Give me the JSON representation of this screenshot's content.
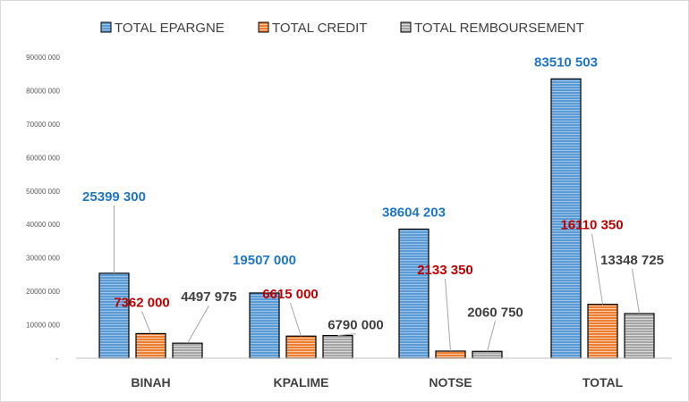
{
  "chart_data": {
    "type": "bar",
    "categories": [
      "BINAH",
      "KPALIME",
      "NOTSE",
      "TOTAL"
    ],
    "series": [
      {
        "name": "TOTAL EPARGNE",
        "color": "#5b9bd5",
        "values": [
          25399300,
          19507000,
          38604203,
          83510503
        ],
        "labels": [
          "25399 300",
          "19507 000",
          "38604 203",
          "83510 503"
        ],
        "label_color": "#1f77c4"
      },
      {
        "name": "TOTAL CREDIT",
        "color": "#ed7d31",
        "values": [
          7362000,
          6615000,
          2133350,
          16110350
        ],
        "labels": [
          "7362 000",
          "6615 000",
          "2133 350",
          "16110 350"
        ],
        "label_color": "#c00000"
      },
      {
        "name": "TOTAL REMBOURSEMENT",
        "color": "#a5a5a5",
        "values": [
          4497975,
          6790000,
          2060750,
          13348725
        ],
        "labels": [
          "4497 975",
          "6790 000",
          "2060 750",
          "13348 725"
        ],
        "label_color": "#404040"
      }
    ],
    "yticks": [
      0,
      10000000,
      20000000,
      30000000,
      40000000,
      50000000,
      60000000,
      70000000,
      80000000,
      90000000
    ],
    "ytick_labels": [
      "-",
      "10000 000",
      "20000 000",
      "30000 000",
      "40000 000",
      "50000 000",
      "60000 000",
      "70000 000",
      "80000 000",
      "90000 000"
    ],
    "ylim": [
      0,
      90000000
    ],
    "legend_position": "top",
    "grid": false
  }
}
